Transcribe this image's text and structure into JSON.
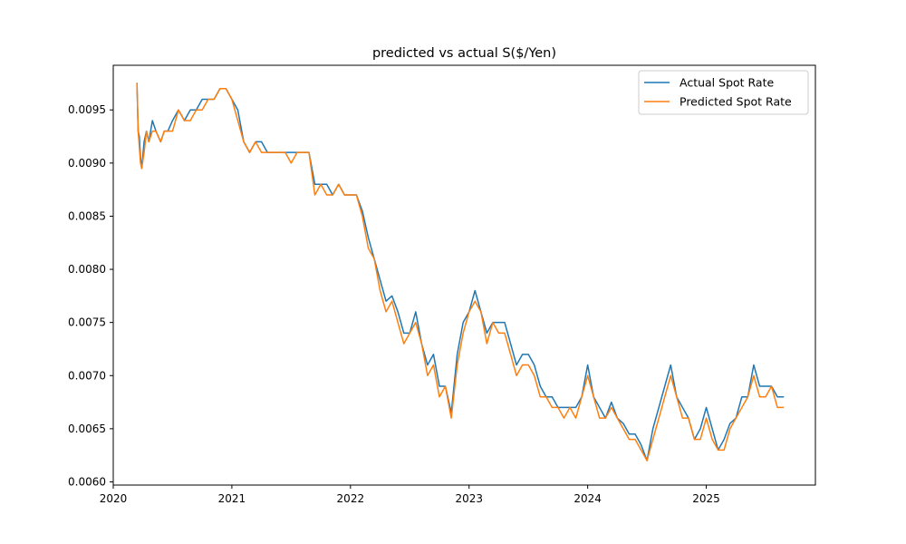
{
  "chart_data": {
    "type": "line",
    "title": "predicted vs actual S($/Yen)",
    "xlabel": "",
    "ylabel": "",
    "xlim": [
      2020.0,
      2025.92
    ],
    "ylim": [
      0.00597,
      0.00992
    ],
    "x_ticks": [
      2020,
      2021,
      2022,
      2023,
      2024,
      2025
    ],
    "x_tick_labels": [
      "2020",
      "2021",
      "2022",
      "2023",
      "2024",
      "2025"
    ],
    "y_ticks": [
      0.006,
      0.0065,
      0.007,
      0.0075,
      0.008,
      0.0085,
      0.009,
      0.0095
    ],
    "y_tick_labels": [
      "0.0060",
      "0.0065",
      "0.0070",
      "0.0075",
      "0.0080",
      "0.0085",
      "0.0090",
      "0.0095"
    ],
    "grid": false,
    "legend_position": "top-right",
    "x": [
      2020.2,
      2020.21,
      2020.22,
      2020.23,
      2020.24,
      2020.26,
      2020.28,
      2020.3,
      2020.33,
      2020.36,
      2020.4,
      2020.43,
      2020.46,
      2020.5,
      2020.55,
      2020.6,
      2020.65,
      2020.7,
      2020.75,
      2020.8,
      2020.85,
      2020.9,
      2020.95,
      2021.0,
      2021.05,
      2021.1,
      2021.15,
      2021.2,
      2021.25,
      2021.3,
      2021.35,
      2021.4,
      2021.45,
      2021.5,
      2021.55,
      2021.6,
      2021.65,
      2021.7,
      2021.75,
      2021.8,
      2021.85,
      2021.9,
      2021.95,
      2022.0,
      2022.05,
      2022.1,
      2022.15,
      2022.2,
      2022.25,
      2022.3,
      2022.35,
      2022.4,
      2022.45,
      2022.5,
      2022.55,
      2022.6,
      2022.65,
      2022.7,
      2022.75,
      2022.8,
      2022.85,
      2022.9,
      2022.95,
      2023.0,
      2023.05,
      2023.1,
      2023.15,
      2023.2,
      2023.25,
      2023.3,
      2023.35,
      2023.4,
      2023.45,
      2023.5,
      2023.55,
      2023.6,
      2023.65,
      2023.7,
      2023.75,
      2023.8,
      2023.85,
      2023.9,
      2023.95,
      2024.0,
      2024.05,
      2024.1,
      2024.15,
      2024.2,
      2024.25,
      2024.3,
      2024.35,
      2024.4,
      2024.45,
      2024.5,
      2024.55,
      2024.6,
      2024.65,
      2024.7,
      2024.75,
      2024.8,
      2024.85,
      2024.9,
      2024.95,
      2025.0,
      2025.05,
      2025.1,
      2025.15,
      2025.2,
      2025.25,
      2025.3,
      2025.35,
      2025.4,
      2025.45,
      2025.5,
      2025.55,
      2025.6,
      2025.65
    ],
    "series": [
      {
        "name": "Actual Spot Rate",
        "color": "#1f77b4",
        "values": [
          0.00975,
          0.0093,
          0.00925,
          0.00905,
          0.00895,
          0.0092,
          0.0093,
          0.0092,
          0.0094,
          0.0093,
          0.0092,
          0.0093,
          0.0093,
          0.0094,
          0.0095,
          0.0094,
          0.0095,
          0.0095,
          0.0096,
          0.0096,
          0.0096,
          0.0097,
          0.0097,
          0.0096,
          0.0095,
          0.0092,
          0.0091,
          0.0092,
          0.0092,
          0.0091,
          0.0091,
          0.0091,
          0.0091,
          0.0091,
          0.0091,
          0.0091,
          0.0091,
          0.0088,
          0.0088,
          0.0088,
          0.0087,
          0.0088,
          0.0087,
          0.0087,
          0.0087,
          0.00855,
          0.0083,
          0.0081,
          0.0079,
          0.0077,
          0.00775,
          0.0076,
          0.0074,
          0.0074,
          0.0076,
          0.0073,
          0.0071,
          0.0072,
          0.0069,
          0.0069,
          0.00665,
          0.0072,
          0.0075,
          0.0076,
          0.0078,
          0.0076,
          0.0074,
          0.0075,
          0.0075,
          0.0075,
          0.0073,
          0.0071,
          0.0072,
          0.0072,
          0.0071,
          0.0069,
          0.0068,
          0.0068,
          0.0067,
          0.0067,
          0.0067,
          0.0067,
          0.0068,
          0.0071,
          0.0068,
          0.0067,
          0.0066,
          0.00675,
          0.0066,
          0.00655,
          0.00645,
          0.00645,
          0.00635,
          0.0062,
          0.0065,
          0.0067,
          0.0069,
          0.0071,
          0.0068,
          0.0067,
          0.0066,
          0.0064,
          0.0065,
          0.0067,
          0.0065,
          0.0063,
          0.0064,
          0.00655,
          0.0066,
          0.0068,
          0.0068,
          0.0071,
          0.0069,
          0.0069,
          0.0069,
          0.0068,
          0.0068
        ]
      },
      {
        "name": "Predicted Spot Rate",
        "color": "#ff7f0e",
        "values": [
          0.00975,
          0.0093,
          0.00915,
          0.009,
          0.00895,
          0.0091,
          0.0093,
          0.0092,
          0.0093,
          0.0093,
          0.0092,
          0.0093,
          0.0093,
          0.0093,
          0.0095,
          0.0094,
          0.0094,
          0.0095,
          0.0095,
          0.0096,
          0.0096,
          0.0097,
          0.0097,
          0.0096,
          0.0094,
          0.0092,
          0.0091,
          0.0092,
          0.0091,
          0.0091,
          0.0091,
          0.0091,
          0.0091,
          0.009,
          0.0091,
          0.0091,
          0.0091,
          0.0087,
          0.0088,
          0.0087,
          0.0087,
          0.0088,
          0.0087,
          0.0087,
          0.0087,
          0.0085,
          0.0082,
          0.0081,
          0.0078,
          0.0076,
          0.0077,
          0.0075,
          0.0073,
          0.0074,
          0.0075,
          0.0073,
          0.007,
          0.0071,
          0.0068,
          0.0069,
          0.0066,
          0.0071,
          0.0074,
          0.0076,
          0.0077,
          0.0076,
          0.0073,
          0.0075,
          0.0074,
          0.0074,
          0.0072,
          0.007,
          0.0071,
          0.0071,
          0.007,
          0.0068,
          0.0068,
          0.0067,
          0.0067,
          0.0066,
          0.0067,
          0.0066,
          0.0068,
          0.007,
          0.0068,
          0.0066,
          0.0066,
          0.0067,
          0.0066,
          0.0065,
          0.0064,
          0.0064,
          0.0063,
          0.0062,
          0.0064,
          0.0066,
          0.0068,
          0.007,
          0.0068,
          0.0066,
          0.0066,
          0.0064,
          0.0064,
          0.0066,
          0.0064,
          0.0063,
          0.0063,
          0.0065,
          0.0066,
          0.0067,
          0.0068,
          0.007,
          0.0068,
          0.0068,
          0.0069,
          0.0067,
          0.0067
        ]
      }
    ]
  }
}
